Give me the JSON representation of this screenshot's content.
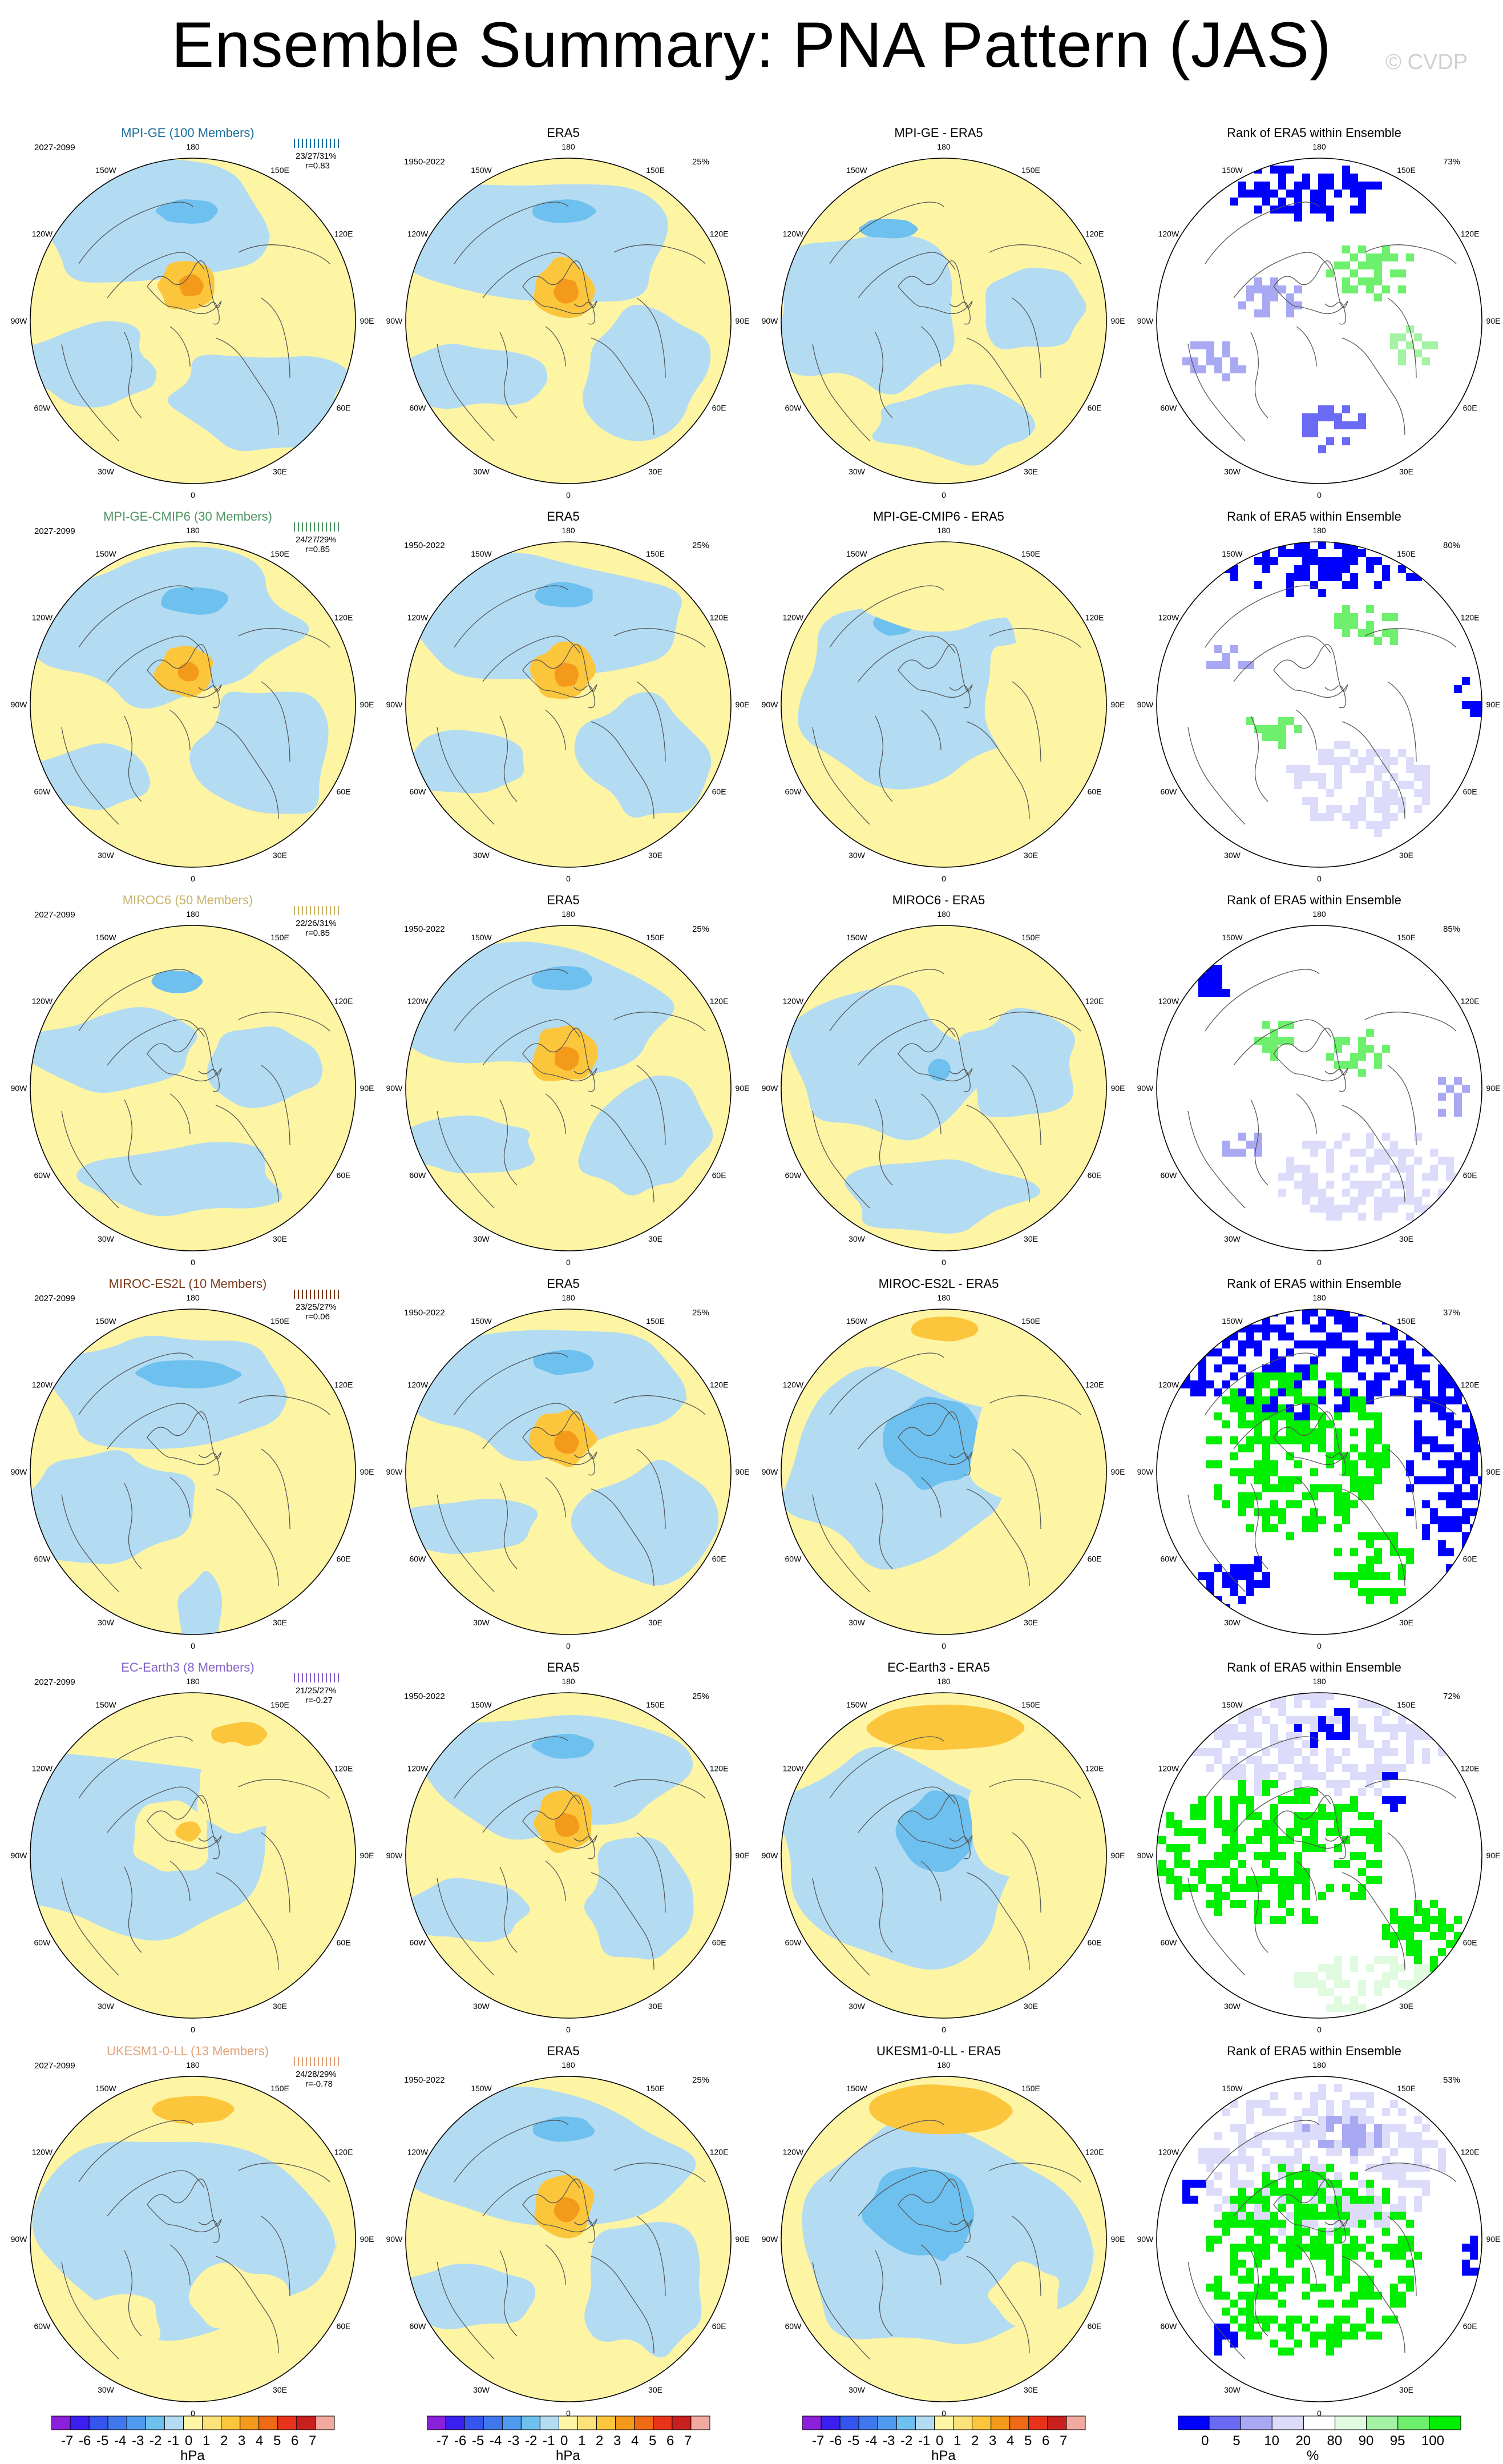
{
  "title": "Ensemble Summary: PNA Pattern (JAS)",
  "copyright": "© CVDP",
  "map_labels": {
    "lon_180": "180",
    "lon_0": "0",
    "lon_150w": "150W",
    "lon_150e": "150E",
    "lon_120w": "120W",
    "lon_120e": "120E",
    "lon_90w": "90W",
    "lon_90e": "90E",
    "lon_60w": "60W",
    "lon_60e": "60E",
    "lon_30w": "30W",
    "lon_30e": "30E"
  },
  "colors": {
    "yellow": "#fdf4a4",
    "light_blue": "#b3dcf2",
    "orange": "#fbc63c",
    "dark_orange": "#f49a1a",
    "mid_blue": "#6ec0ef",
    "blue_strong": "#0000ff",
    "green_strong": "#00ee00"
  },
  "rows": [
    {
      "model": "MPI-GE (100 Members)",
      "model_color": "#1b6f9d",
      "period": "2027-2099",
      "stats": "23/27/31%",
      "r": "r=0.83",
      "obs": "ERA5",
      "obs_period": "1950-2022",
      "obs_pct": "25%",
      "diff": "MPI-GE - ERA5",
      "rank": "Rank of ERA5 within Ensemble",
      "rank_pct": "73%"
    },
    {
      "model": "MPI-GE-CMIP6 (30 Members)",
      "model_color": "#4e9461",
      "period": "2027-2099",
      "stats": "24/27/29%",
      "r": "r=0.85",
      "obs": "ERA5",
      "obs_period": "1950-2022",
      "obs_pct": "25%",
      "diff": "MPI-GE-CMIP6 - ERA5",
      "rank": "Rank of ERA5 within Ensemble",
      "rank_pct": "80%"
    },
    {
      "model": "MIROC6 (50 Members)",
      "model_color": "#c9b46b",
      "period": "2027-2099",
      "stats": "22/26/31%",
      "r": "r=0.85",
      "obs": "ERA5",
      "obs_period": "1950-2022",
      "obs_pct": "25%",
      "diff": "MIROC6 - ERA5",
      "rank": "Rank of ERA5 within Ensemble",
      "rank_pct": "85%"
    },
    {
      "model": "MIROC-ES2L (10 Members)",
      "model_color": "#7a3a1c",
      "period": "2027-2099",
      "stats": "23/25/27%",
      "r": "r=0.06",
      "obs": "ERA5",
      "obs_period": "1950-2022",
      "obs_pct": "25%",
      "diff": "MIROC-ES2L - ERA5",
      "rank": "Rank of ERA5 within Ensemble",
      "rank_pct": "37%"
    },
    {
      "model": "EC-Earth3 (8 Members)",
      "model_color": "#8463c8",
      "period": "2027-2099",
      "stats": "21/25/27%",
      "r": "r=-0.27",
      "obs": "ERA5",
      "obs_period": "1950-2022",
      "obs_pct": "25%",
      "diff": "EC-Earth3 - ERA5",
      "rank": "Rank of ERA5 within Ensemble",
      "rank_pct": "72%"
    },
    {
      "model": "UKESM1-0-LL (13 Members)",
      "model_color": "#e3a278",
      "period": "2027-2099",
      "stats": "24/28/29%",
      "r": "r=-0.78",
      "obs": "ERA5",
      "obs_period": "1950-2022",
      "obs_pct": "25%",
      "diff": "UKESM1-0-LL - ERA5",
      "rank": "Rank of ERA5 within Ensemble",
      "rank_pct": "53%"
    }
  ],
  "pressure_scale": {
    "ticks": [
      "-7",
      "-6",
      "-5",
      "-4",
      "-3",
      "-2",
      "-1",
      "0",
      "1",
      "2",
      "3",
      "4",
      "5",
      "6",
      "7"
    ],
    "unit": "hPa",
    "colors": [
      "#8c1fd9",
      "#3b1ff0",
      "#3355ee",
      "#3f78ec",
      "#4f9bef",
      "#6ec0ef",
      "#b3dcf2",
      "#fdf4a4",
      "#fbe27a",
      "#fbc63c",
      "#f49a1a",
      "#ee6a14",
      "#e8331a",
      "#c8201e",
      "#f1a9a0"
    ]
  },
  "rank_scale": {
    "ticks": [
      "0",
      "5",
      "10",
      "20",
      "80",
      "90",
      "95",
      "100"
    ],
    "unit": "%",
    "colors": [
      "#0000ff",
      "#6a6af5",
      "#a8a8f3",
      "#dcdcfa",
      "#ffffff",
      "#e0fbe0",
      "#a4f2a4",
      "#6ef06e",
      "#00ee00"
    ]
  }
}
